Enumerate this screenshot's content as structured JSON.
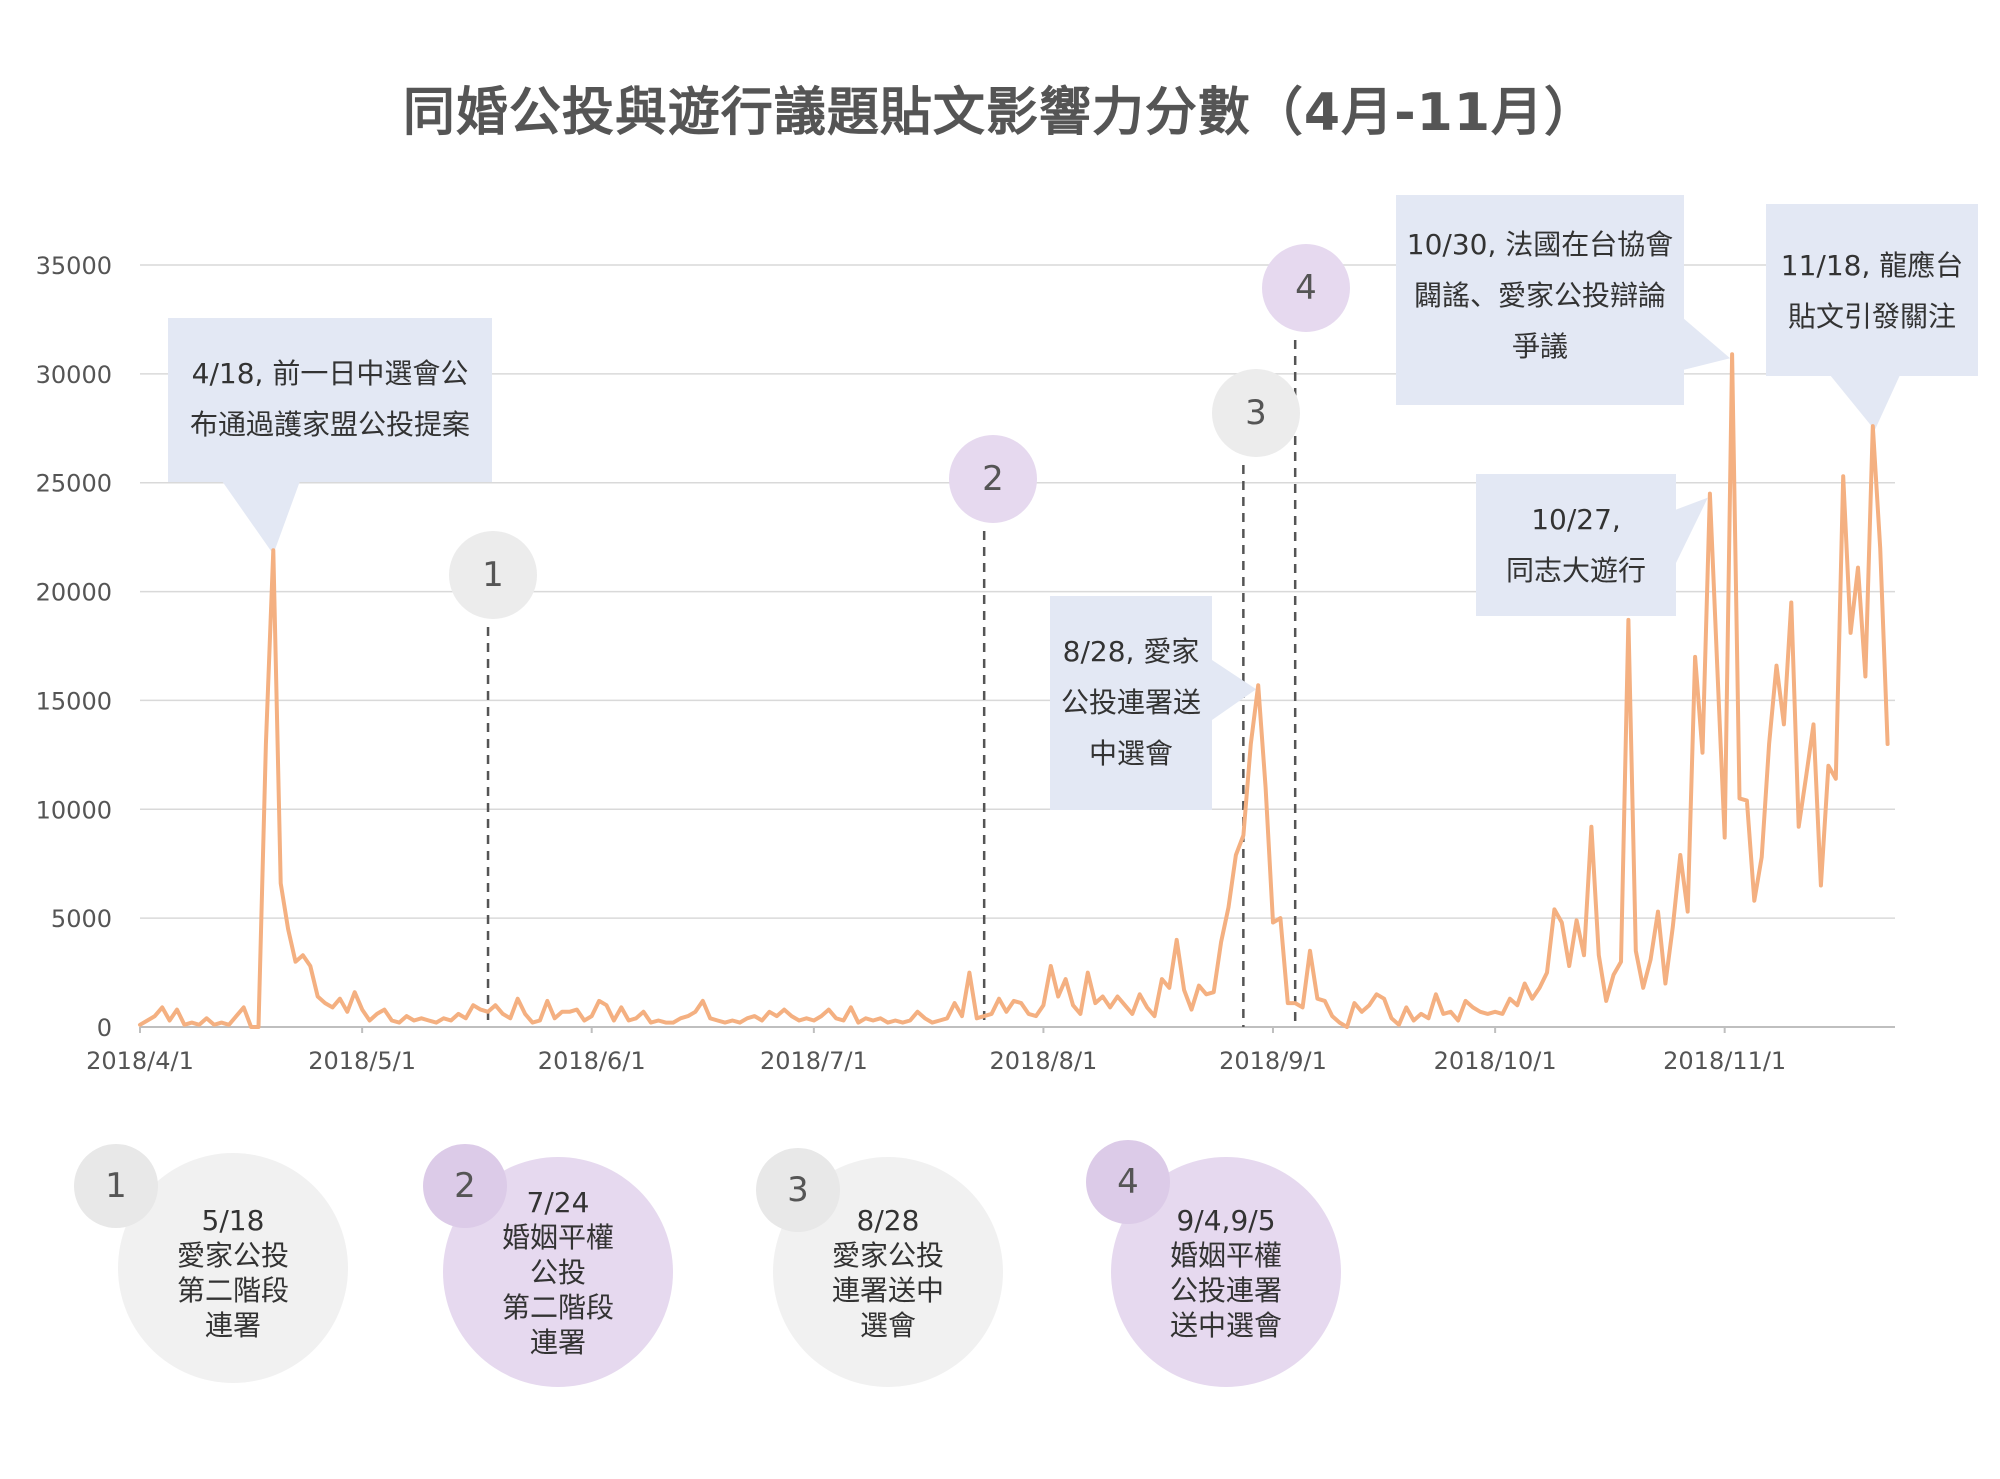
{
  "chart_data": {
    "type": "line",
    "title": "同婚公投與遊行議題貼文影響力分數（4月-11月）",
    "ylim": [
      0,
      35000
    ],
    "yticks": [
      0,
      5000,
      10000,
      15000,
      20000,
      25000,
      30000,
      35000
    ],
    "xlim": [
      "2018-04-01",
      "2018-11-24"
    ],
    "xticks": [
      {
        "date": "2018-04-01",
        "label": "2018/4/1"
      },
      {
        "date": "2018-05-01",
        "label": "2018/5/1"
      },
      {
        "date": "2018-06-01",
        "label": "2018/6/1"
      },
      {
        "date": "2018-07-01",
        "label": "2018/7/1"
      },
      {
        "date": "2018-08-01",
        "label": "2018/8/1"
      },
      {
        "date": "2018-09-01",
        "label": "2018/9/1"
      },
      {
        "date": "2018-10-01",
        "label": "2018/10/1"
      },
      {
        "date": "2018-11-01",
        "label": "2018/11/1"
      }
    ],
    "grid": true,
    "line_color": "#f4b081",
    "series": [
      {
        "points": [
          [
            "2018-04-01",
            100
          ],
          [
            "2018-04-02",
            300
          ],
          [
            "2018-04-03",
            500
          ],
          [
            "2018-04-04",
            900
          ],
          [
            "2018-04-05",
            300
          ],
          [
            "2018-04-06",
            800
          ],
          [
            "2018-04-07",
            100
          ],
          [
            "2018-04-08",
            200
          ],
          [
            "2018-04-09",
            100
          ],
          [
            "2018-04-10",
            400
          ],
          [
            "2018-04-11",
            100
          ],
          [
            "2018-04-12",
            200
          ],
          [
            "2018-04-13",
            100
          ],
          [
            "2018-04-14",
            500
          ],
          [
            "2018-04-15",
            900
          ],
          [
            "2018-04-16",
            0
          ],
          [
            "2018-04-17",
            0
          ],
          [
            "2018-04-18",
            13000
          ],
          [
            "2018-04-19",
            21900
          ],
          [
            "2018-04-20",
            6600
          ],
          [
            "2018-04-21",
            4500
          ],
          [
            "2018-04-22",
            3000
          ],
          [
            "2018-04-23",
            3300
          ],
          [
            "2018-04-24",
            2800
          ],
          [
            "2018-04-25",
            1400
          ],
          [
            "2018-04-26",
            1100
          ],
          [
            "2018-04-27",
            900
          ],
          [
            "2018-04-28",
            1300
          ],
          [
            "2018-04-29",
            700
          ],
          [
            "2018-04-30",
            1600
          ],
          [
            "2018-05-01",
            800
          ],
          [
            "2018-05-02",
            300
          ],
          [
            "2018-05-03",
            600
          ],
          [
            "2018-05-04",
            800
          ],
          [
            "2018-05-05",
            300
          ],
          [
            "2018-05-06",
            200
          ],
          [
            "2018-05-07",
            500
          ],
          [
            "2018-05-08",
            300
          ],
          [
            "2018-05-09",
            400
          ],
          [
            "2018-05-10",
            300
          ],
          [
            "2018-05-11",
            200
          ],
          [
            "2018-05-12",
            400
          ],
          [
            "2018-05-13",
            300
          ],
          [
            "2018-05-14",
            600
          ],
          [
            "2018-05-15",
            400
          ],
          [
            "2018-05-16",
            1000
          ],
          [
            "2018-05-17",
            800
          ],
          [
            "2018-05-18",
            700
          ],
          [
            "2018-05-19",
            1000
          ],
          [
            "2018-05-20",
            600
          ],
          [
            "2018-05-21",
            400
          ],
          [
            "2018-05-22",
            1300
          ],
          [
            "2018-05-23",
            600
          ],
          [
            "2018-05-24",
            200
          ],
          [
            "2018-05-25",
            300
          ],
          [
            "2018-05-26",
            1200
          ],
          [
            "2018-05-27",
            400
          ],
          [
            "2018-05-28",
            700
          ],
          [
            "2018-05-29",
            700
          ],
          [
            "2018-05-30",
            800
          ],
          [
            "2018-05-31",
            300
          ],
          [
            "2018-06-01",
            500
          ],
          [
            "2018-06-02",
            1200
          ],
          [
            "2018-06-03",
            1000
          ],
          [
            "2018-06-04",
            300
          ],
          [
            "2018-06-05",
            900
          ],
          [
            "2018-06-06",
            300
          ],
          [
            "2018-06-07",
            400
          ],
          [
            "2018-06-08",
            700
          ],
          [
            "2018-06-09",
            200
          ],
          [
            "2018-06-10",
            300
          ],
          [
            "2018-06-11",
            200
          ],
          [
            "2018-06-12",
            200
          ],
          [
            "2018-06-13",
            400
          ],
          [
            "2018-06-14",
            500
          ],
          [
            "2018-06-15",
            700
          ],
          [
            "2018-06-16",
            1200
          ],
          [
            "2018-06-17",
            400
          ],
          [
            "2018-06-18",
            300
          ],
          [
            "2018-06-19",
            200
          ],
          [
            "2018-06-20",
            300
          ],
          [
            "2018-06-21",
            200
          ],
          [
            "2018-06-22",
            400
          ],
          [
            "2018-06-23",
            500
          ],
          [
            "2018-06-24",
            300
          ],
          [
            "2018-06-25",
            700
          ],
          [
            "2018-06-26",
            500
          ],
          [
            "2018-06-27",
            800
          ],
          [
            "2018-06-28",
            500
          ],
          [
            "2018-06-29",
            300
          ],
          [
            "2018-06-30",
            400
          ],
          [
            "2018-07-01",
            300
          ],
          [
            "2018-07-02",
            500
          ],
          [
            "2018-07-03",
            800
          ],
          [
            "2018-07-04",
            400
          ],
          [
            "2018-07-05",
            300
          ],
          [
            "2018-07-06",
            900
          ],
          [
            "2018-07-07",
            200
          ],
          [
            "2018-07-08",
            400
          ],
          [
            "2018-07-09",
            300
          ],
          [
            "2018-07-10",
            400
          ],
          [
            "2018-07-11",
            200
          ],
          [
            "2018-07-12",
            300
          ],
          [
            "2018-07-13",
            200
          ],
          [
            "2018-07-14",
            300
          ],
          [
            "2018-07-15",
            700
          ],
          [
            "2018-07-16",
            400
          ],
          [
            "2018-07-17",
            200
          ],
          [
            "2018-07-18",
            300
          ],
          [
            "2018-07-19",
            400
          ],
          [
            "2018-07-20",
            1100
          ],
          [
            "2018-07-21",
            500
          ],
          [
            "2018-07-22",
            2500
          ],
          [
            "2018-07-23",
            400
          ],
          [
            "2018-07-24",
            500
          ],
          [
            "2018-07-25",
            600
          ],
          [
            "2018-07-26",
            1300
          ],
          [
            "2018-07-27",
            700
          ],
          [
            "2018-07-28",
            1200
          ],
          [
            "2018-07-29",
            1100
          ],
          [
            "2018-07-30",
            600
          ],
          [
            "2018-07-31",
            500
          ],
          [
            "2018-08-01",
            1000
          ],
          [
            "2018-08-02",
            2800
          ],
          [
            "2018-08-03",
            1400
          ],
          [
            "2018-08-04",
            2200
          ],
          [
            "2018-08-05",
            1000
          ],
          [
            "2018-08-06",
            600
          ],
          [
            "2018-08-07",
            2500
          ],
          [
            "2018-08-08",
            1100
          ],
          [
            "2018-08-09",
            1400
          ],
          [
            "2018-08-10",
            900
          ],
          [
            "2018-08-11",
            1400
          ],
          [
            "2018-08-12",
            1000
          ],
          [
            "2018-08-13",
            600
          ],
          [
            "2018-08-14",
            1500
          ],
          [
            "2018-08-15",
            900
          ],
          [
            "2018-08-16",
            500
          ],
          [
            "2018-08-17",
            2200
          ],
          [
            "2018-08-18",
            1800
          ],
          [
            "2018-08-19",
            4000
          ],
          [
            "2018-08-20",
            1700
          ],
          [
            "2018-08-21",
            800
          ],
          [
            "2018-08-22",
            1900
          ],
          [
            "2018-08-23",
            1500
          ],
          [
            "2018-08-24",
            1600
          ],
          [
            "2018-08-25",
            3900
          ],
          [
            "2018-08-26",
            5500
          ],
          [
            "2018-08-27",
            7900
          ],
          [
            "2018-08-28",
            8800
          ],
          [
            "2018-08-29",
            13000
          ],
          [
            "2018-08-30",
            15700
          ],
          [
            "2018-08-31",
            11000
          ],
          [
            "2018-09-01",
            4800
          ],
          [
            "2018-09-02",
            5000
          ],
          [
            "2018-09-03",
            1100
          ],
          [
            "2018-09-04",
            1100
          ],
          [
            "2018-09-05",
            900
          ],
          [
            "2018-09-06",
            3500
          ],
          [
            "2018-09-07",
            1300
          ],
          [
            "2018-09-08",
            1200
          ],
          [
            "2018-09-09",
            500
          ],
          [
            "2018-09-10",
            200
          ],
          [
            "2018-09-11",
            0
          ],
          [
            "2018-09-12",
            1100
          ],
          [
            "2018-09-13",
            700
          ],
          [
            "2018-09-14",
            1000
          ],
          [
            "2018-09-15",
            1500
          ],
          [
            "2018-09-16",
            1300
          ],
          [
            "2018-09-17",
            400
          ],
          [
            "2018-09-18",
            100
          ],
          [
            "2018-09-19",
            900
          ],
          [
            "2018-09-20",
            300
          ],
          [
            "2018-09-21",
            600
          ],
          [
            "2018-09-22",
            400
          ],
          [
            "2018-09-23",
            1500
          ],
          [
            "2018-09-24",
            600
          ],
          [
            "2018-09-25",
            700
          ],
          [
            "2018-09-26",
            300
          ],
          [
            "2018-09-27",
            1200
          ],
          [
            "2018-09-28",
            900
          ],
          [
            "2018-09-29",
            700
          ],
          [
            "2018-09-30",
            600
          ],
          [
            "2018-10-01",
            700
          ],
          [
            "2018-10-02",
            600
          ],
          [
            "2018-10-03",
            1300
          ],
          [
            "2018-10-04",
            1000
          ],
          [
            "2018-10-05",
            2000
          ],
          [
            "2018-10-06",
            1300
          ],
          [
            "2018-10-07",
            1800
          ],
          [
            "2018-10-08",
            2500
          ],
          [
            "2018-10-09",
            5400
          ],
          [
            "2018-10-10",
            4800
          ],
          [
            "2018-10-11",
            2800
          ],
          [
            "2018-10-12",
            4900
          ],
          [
            "2018-10-13",
            3300
          ],
          [
            "2018-10-14",
            9200
          ],
          [
            "2018-10-15",
            3300
          ],
          [
            "2018-10-16",
            1200
          ],
          [
            "2018-10-17",
            2400
          ],
          [
            "2018-10-18",
            3000
          ],
          [
            "2018-10-19",
            18700
          ],
          [
            "2018-10-20",
            3500
          ],
          [
            "2018-10-21",
            1800
          ],
          [
            "2018-10-22",
            3100
          ],
          [
            "2018-10-23",
            5300
          ],
          [
            "2018-10-24",
            2000
          ],
          [
            "2018-10-25",
            4600
          ],
          [
            "2018-10-26",
            7900
          ],
          [
            "2018-10-27",
            5300
          ],
          [
            "2018-10-28",
            17000
          ],
          [
            "2018-10-29",
            12600
          ],
          [
            "2018-10-30",
            24500
          ],
          [
            "2018-10-31",
            16500
          ],
          [
            "2018-11-01",
            8700
          ],
          [
            "2018-11-02",
            30900
          ],
          [
            "2018-11-03",
            10500
          ],
          [
            "2018-11-04",
            10400
          ],
          [
            "2018-11-05",
            5800
          ],
          [
            "2018-11-06",
            7800
          ],
          [
            "2018-11-07",
            13000
          ],
          [
            "2018-11-08",
            16600
          ],
          [
            "2018-11-09",
            13900
          ],
          [
            "2018-11-10",
            19500
          ],
          [
            "2018-11-11",
            9200
          ],
          [
            "2018-11-12",
            11500
          ],
          [
            "2018-11-13",
            13900
          ],
          [
            "2018-11-14",
            6500
          ],
          [
            "2018-11-15",
            12000
          ],
          [
            "2018-11-16",
            11400
          ],
          [
            "2018-11-17",
            25300
          ],
          [
            "2018-11-18",
            18100
          ],
          [
            "2018-11-19",
            21100
          ],
          [
            "2018-11-20",
            16100
          ],
          [
            "2018-11-21",
            27600
          ],
          [
            "2018-11-22",
            22000
          ],
          [
            "2018-11-23",
            13000
          ]
        ]
      }
    ],
    "event_lines": [
      {
        "id": "1",
        "date": "2018-05-18",
        "style": "gray"
      },
      {
        "id": "2",
        "date": "2018-07-24",
        "style": "purple"
      },
      {
        "id": "3",
        "date": "2018-08-28",
        "style": "gray"
      },
      {
        "id": "4",
        "date": "2018-09-04",
        "style": "purple"
      }
    ],
    "annotations": [
      {
        "lines": [
          "4/18, 前一日中選會公",
          "布通過護家盟公投提案"
        ]
      },
      {
        "lines": [
          "8/28, 愛家",
          "公投連署送",
          "中選會"
        ]
      },
      {
        "lines": [
          "10/27,",
          "同志大遊行"
        ]
      },
      {
        "lines": [
          "10/30, 法國在台協會",
          "闢謠、愛家公投辯論",
          "爭議"
        ]
      },
      {
        "lines": [
          "11/18, 龍應台",
          "貼文引發關注"
        ]
      }
    ]
  },
  "legend": [
    {
      "id": "1",
      "text": "5/18\n愛家公投\n第二階段\n連署",
      "style": "gray"
    },
    {
      "id": "2",
      "text": "7/24\n婚姻平權\n公投\n第二階段\n連署",
      "style": "purple"
    },
    {
      "id": "3",
      "text": "8/28\n愛家公投\n連署送中\n選會",
      "style": "gray"
    },
    {
      "id": "4",
      "text": "9/4,9/5\n婚姻平權\n公投連署\n送中選會",
      "style": "purple"
    }
  ],
  "colors": {
    "line": "#f4b081",
    "annotation_bg": "#e3e8f4",
    "gray_marker": "#ececec",
    "purple_marker": "#e6d9ef",
    "grid": "#d9d9d9",
    "text": "#555555"
  }
}
